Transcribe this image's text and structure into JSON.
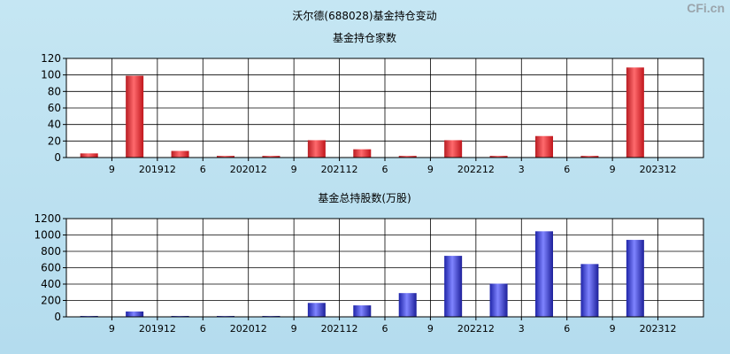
{
  "title": "沃尔德(688028)基金持仓变动",
  "watermark": "CFi.cn",
  "chart_data": [
    {
      "type": "bar",
      "title": "基金持仓家数",
      "color": "#e8363b",
      "categories": [
        "9",
        "201912",
        "6",
        "202012",
        "9",
        "202112",
        "6",
        "9",
        "202212",
        "3",
        "6",
        "9",
        "202312"
      ],
      "values": [
        5,
        99,
        8,
        2,
        2,
        21,
        10,
        2,
        21,
        2,
        26,
        2,
        109
      ],
      "ylim": [
        0,
        120
      ],
      "yticks": [
        0,
        20,
        40,
        60,
        80,
        100,
        120
      ],
      "grid": true
    },
    {
      "type": "bar",
      "title": "基金总持股数(万股)",
      "color": "#3a3fd6",
      "categories": [
        "9",
        "201912",
        "6",
        "202012",
        "9",
        "202112",
        "6",
        "9",
        "202212",
        "3",
        "6",
        "9",
        "202312"
      ],
      "values": [
        8,
        65,
        8,
        8,
        8,
        170,
        140,
        290,
        745,
        405,
        1045,
        645,
        940
      ],
      "ylim": [
        0,
        1200
      ],
      "yticks": [
        0,
        200,
        400,
        600,
        800,
        1000,
        1200
      ],
      "grid": true
    }
  ]
}
